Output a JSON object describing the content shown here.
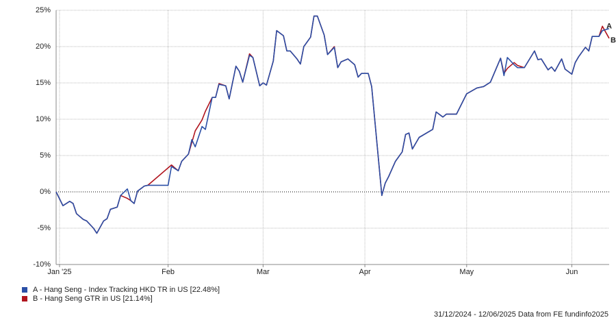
{
  "chart_data": {
    "type": "line",
    "x": [
      0,
      2,
      4,
      5,
      6,
      8,
      9,
      11,
      12,
      14,
      15,
      16,
      18,
      19,
      21,
      22,
      23,
      24,
      26,
      27,
      33,
      34,
      36,
      37,
      39,
      40,
      41,
      43,
      44,
      46,
      47,
      48,
      50,
      51,
      53,
      54,
      55,
      57,
      58,
      60,
      61,
      62,
      64,
      65,
      67,
      68,
      69,
      71,
      72,
      73,
      75,
      76,
      77,
      79,
      80,
      82,
      83,
      84,
      86,
      88,
      89,
      90,
      92,
      93,
      96,
      97,
      98,
      100,
      102,
      103,
      104,
      105,
      107,
      111,
      112,
      114,
      115,
      117,
      118,
      121,
      124,
      125,
      126,
      128,
      131,
      132,
      133,
      135,
      136,
      138,
      141,
      142,
      143,
      145,
      146,
      147,
      149,
      150,
      152,
      153,
      154,
      156,
      157,
      158,
      160,
      161,
      163
    ],
    "series": [
      {
        "name": "A - Hang Seng - Index Tracking HKD TR in US [22.48%]",
        "end_label": "A",
        "color": "#2b4fa6",
        "values": [
          0,
          -1.9,
          -1.3,
          -1.6,
          -3.0,
          -3.8,
          -4.0,
          -5.0,
          -5.7,
          -4.0,
          -3.7,
          -2.4,
          -2.1,
          -0.5,
          0.4,
          -1.2,
          -1.6,
          0.1,
          0.8,
          0.9,
          0.9,
          3.5,
          2.9,
          4.2,
          5.2,
          7.2,
          6.2,
          9.0,
          8.6,
          13.0,
          13.0,
          14.8,
          14.6,
          12.8,
          17.3,
          16.6,
          15.1,
          18.8,
          18.5,
          14.6,
          15.0,
          14.7,
          18.0,
          22.2,
          21.5,
          19.4,
          19.4,
          18.3,
          17.6,
          20.0,
          21.3,
          24.2,
          24.2,
          21.6,
          18.9,
          19.9,
          17.1,
          17.9,
          18.3,
          17.5,
          15.8,
          16.3,
          16.3,
          14.5,
          -0.5,
          1.2,
          2.1,
          4.2,
          5.5,
          7.9,
          8.1,
          5.9,
          7.5,
          8.6,
          11.0,
          10.3,
          10.7,
          10.7,
          10.7,
          13.5,
          14.3,
          14.4,
          14.5,
          15.1,
          18.4,
          16.0,
          18.5,
          17.5,
          17.1,
          17.1,
          19.4,
          18.2,
          18.3,
          16.8,
          17.2,
          16.6,
          18.3,
          16.9,
          16.2,
          17.8,
          18.6,
          19.9,
          19.4,
          21.4,
          21.4,
          22.2,
          22.48
        ]
      },
      {
        "name": "B - Hang Seng GTR in US [21.14%]",
        "end_label": "B",
        "color": "#b0141e",
        "values": [
          0,
          -1.9,
          -1.3,
          -1.6,
          -3.0,
          -3.8,
          -4.0,
          -5.0,
          -5.7,
          -4.0,
          -3.7,
          -2.4,
          -2.1,
          -0.5,
          -0.9,
          -1.2,
          -1.6,
          0.1,
          0.8,
          0.9,
          3.3,
          3.7,
          2.9,
          4.2,
          5.2,
          6.8,
          8.4,
          9.9,
          11.1,
          13.0,
          13.0,
          14.9,
          14.6,
          12.8,
          17.3,
          16.6,
          15.1,
          19.0,
          18.5,
          14.6,
          15.0,
          14.7,
          18.0,
          22.2,
          21.5,
          19.4,
          19.4,
          18.3,
          17.6,
          20.0,
          21.3,
          24.2,
          24.2,
          21.6,
          18.9,
          20.0,
          17.1,
          17.9,
          18.3,
          17.5,
          15.8,
          16.3,
          16.3,
          14.5,
          -0.5,
          1.2,
          2.1,
          4.2,
          5.5,
          7.9,
          8.1,
          5.9,
          7.5,
          8.6,
          11.0,
          10.3,
          10.7,
          10.7,
          10.7,
          13.5,
          14.3,
          14.4,
          14.5,
          15.1,
          18.4,
          16.3,
          17.0,
          17.8,
          17.4,
          17.1,
          19.4,
          18.2,
          18.3,
          16.8,
          17.2,
          16.6,
          18.3,
          16.9,
          16.2,
          17.8,
          18.6,
          19.9,
          19.4,
          21.4,
          21.4,
          22.8,
          21.14
        ]
      }
    ],
    "xlim": [
      0,
      163
    ],
    "xticks": [
      {
        "value": 1,
        "label": "Jan '25"
      },
      {
        "value": 33,
        "label": "Feb"
      },
      {
        "value": 61,
        "label": "Mar"
      },
      {
        "value": 91,
        "label": "Apr"
      },
      {
        "value": 121,
        "label": "May"
      },
      {
        "value": 152,
        "label": "Jun"
      }
    ],
    "ylim": [
      -10,
      25
    ],
    "yticks": [
      {
        "value": -10,
        "label": "-10%"
      },
      {
        "value": -5,
        "label": "-5%"
      },
      {
        "value": 0,
        "label": "0%"
      },
      {
        "value": 5,
        "label": "5%"
      },
      {
        "value": 10,
        "label": "10%"
      },
      {
        "value": 15,
        "label": "15%"
      },
      {
        "value": 20,
        "label": "20%"
      },
      {
        "value": 25,
        "label": "25%"
      }
    ],
    "grid": true,
    "footer": "31/12/2024 - 12/06/2025 Data from FE fundinfo2025"
  }
}
